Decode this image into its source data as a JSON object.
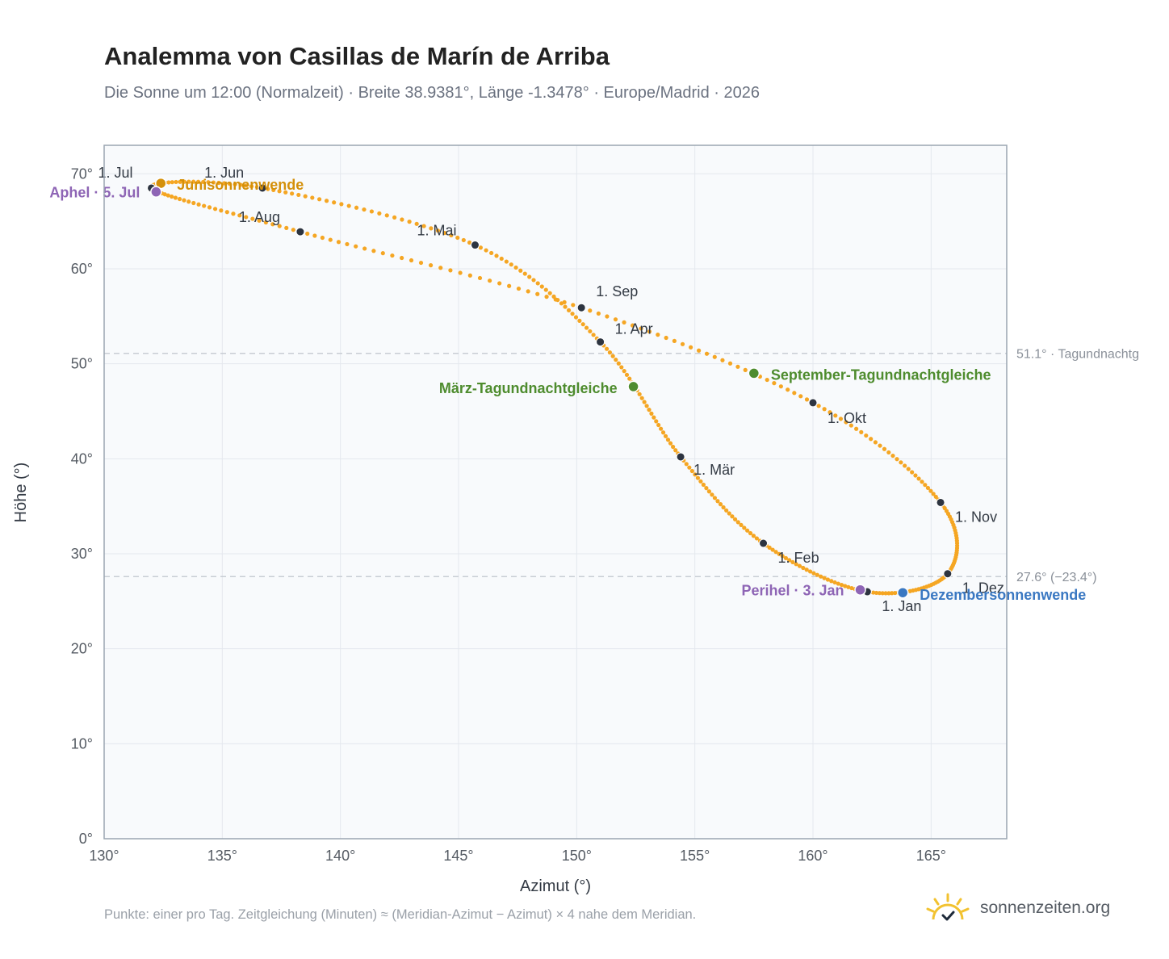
{
  "header": {
    "title": "Analemma von Casillas de Marín de Arriba",
    "subtitle": "Die Sonne um 12:00 (Normalzeit) · Breite 38.9381°, Länge -1.3478° · Europe/Madrid · 2026"
  },
  "footer": {
    "note": "Punkte: einer pro Tag. Zeitgleichung (Minuten) ≈ (Meridian-Azimut − Azimut) × 4 nahe dem Meridian.",
    "brand": "sonnenzeiten.org"
  },
  "colors": {
    "curve": "#f5a623",
    "month_marker": "#2d3440",
    "solstice_june": "#d4900a",
    "equinox": "#4e8c2e",
    "solstice_december": "#3a78c2",
    "apsis": "#8e65b5",
    "reference_line": "#c8cdd4",
    "plot_background": "#f8fafc"
  },
  "chart_data": {
    "type": "scatter",
    "xlabel": "Azimut (°)",
    "ylabel": "Höhe (°)",
    "xlim": [
      130,
      168.2
    ],
    "ylim": [
      0,
      73
    ],
    "x_ticks": [
      130,
      135,
      140,
      145,
      150,
      155,
      160,
      165
    ],
    "y_ticks": [
      0,
      10,
      20,
      30,
      40,
      50,
      60,
      70
    ],
    "x_tick_labels": [
      "130°",
      "135°",
      "140°",
      "145°",
      "150°",
      "155°",
      "160°",
      "165°"
    ],
    "y_tick_labels": [
      "0°",
      "10°",
      "20°",
      "30°",
      "40°",
      "50°",
      "60°",
      "70°"
    ],
    "grid": true,
    "series": [
      {
        "points_per": "day",
        "monthly_points": [
          {
            "label": "1. Jan",
            "x": 162.3,
            "y": 26.0
          },
          {
            "label": "1. Feb",
            "x": 157.9,
            "y": 31.1
          },
          {
            "label": "1. Mär",
            "x": 154.4,
            "y": 40.2
          },
          {
            "label": "1. Apr",
            "x": 151.0,
            "y": 52.3
          },
          {
            "label": "1. Mai",
            "x": 145.7,
            "y": 62.5
          },
          {
            "label": "1. Jun",
            "x": 136.7,
            "y": 68.5
          },
          {
            "label": "1. Jul",
            "x": 132.0,
            "y": 68.5
          },
          {
            "label": "1. Aug",
            "x": 138.3,
            "y": 63.9
          },
          {
            "label": "1. Sep",
            "x": 150.2,
            "y": 55.9
          },
          {
            "label": "1. Okt",
            "x": 160.0,
            "y": 45.9
          },
          {
            "label": "1. Nov",
            "x": 165.4,
            "y": 35.4
          },
          {
            "label": "1. Dez",
            "x": 165.7,
            "y": 27.9
          }
        ]
      }
    ],
    "events": [
      {
        "label": "Junisonnenwende",
        "x": 132.4,
        "y": 69.0,
        "kind": "solstice_june"
      },
      {
        "label": "Aphel · 5. Jul",
        "x": 132.2,
        "y": 68.1,
        "kind": "apsis"
      },
      {
        "label": "März-Tagundnachtgleiche",
        "x": 152.4,
        "y": 47.6,
        "kind": "equinox"
      },
      {
        "label": "September-Tagundnachtgleiche",
        "x": 157.5,
        "y": 49.0,
        "kind": "equinox"
      },
      {
        "label": "Perihel · 3. Jan",
        "x": 162.0,
        "y": 26.2,
        "kind": "apsis"
      },
      {
        "label": "Dezembersonnenwende",
        "x": 163.8,
        "y": 25.9,
        "kind": "solstice_december"
      }
    ],
    "reference_lines": [
      {
        "y": 51.1,
        "label": "51.1° · Tagundnachtg"
      },
      {
        "y": 27.6,
        "label": "27.6° (−23.4°)"
      }
    ]
  }
}
